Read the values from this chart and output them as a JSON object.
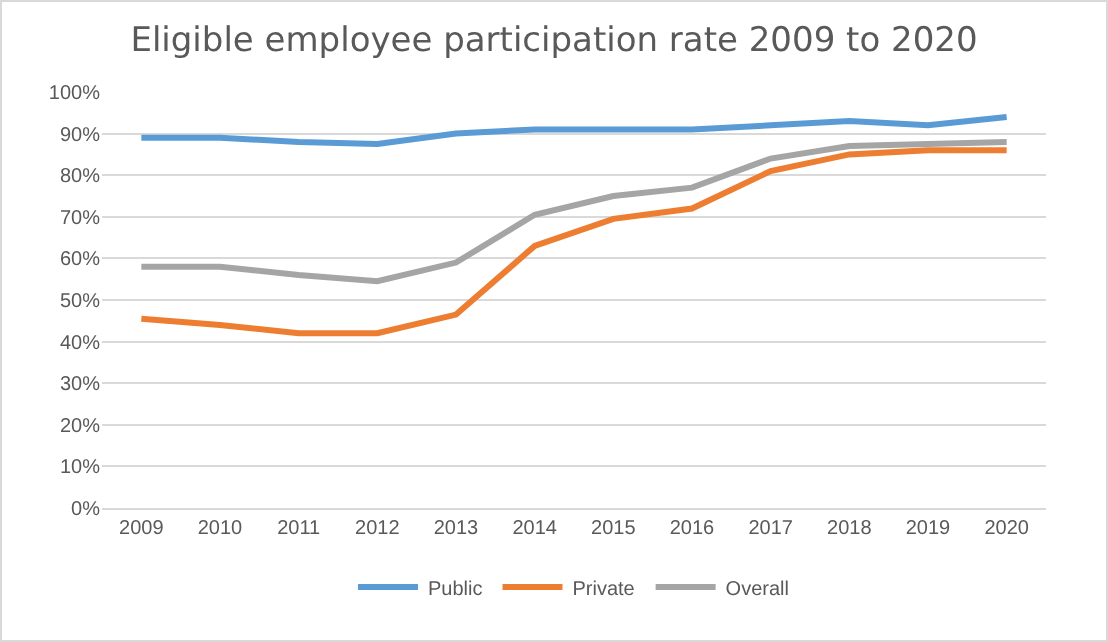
{
  "chart_data": {
    "type": "line",
    "title": "Eligible employee participation rate 2009 to 2020",
    "categories": [
      "2009",
      "2010",
      "2011",
      "2012",
      "2013",
      "2014",
      "2015",
      "2016",
      "2017",
      "2018",
      "2019",
      "2020"
    ],
    "series": [
      {
        "name": "Public",
        "color": "#5b9bd5",
        "values": [
          89,
          89,
          88,
          87.5,
          90,
          91,
          91,
          91,
          92,
          93,
          92,
          94
        ]
      },
      {
        "name": "Private",
        "color": "#ed7d31",
        "values": [
          45.5,
          44,
          42,
          42,
          46.5,
          63,
          69.5,
          72,
          81,
          85,
          86,
          86
        ]
      },
      {
        "name": "Overall",
        "color": "#a5a5a5",
        "values": [
          58,
          58,
          56,
          54.5,
          59,
          70.5,
          75,
          77,
          84,
          87,
          87.5,
          88
        ]
      }
    ],
    "ylim": [
      0,
      100
    ],
    "yticks": [
      {
        "value": 0,
        "label": "0%"
      },
      {
        "value": 10,
        "label": "10%"
      },
      {
        "value": 20,
        "label": "20%"
      },
      {
        "value": 30,
        "label": "30%"
      },
      {
        "value": 40,
        "label": "40%"
      },
      {
        "value": 50,
        "label": "50%"
      },
      {
        "value": 60,
        "label": "60%"
      },
      {
        "value": 70,
        "label": "70%"
      },
      {
        "value": 80,
        "label": "80%"
      },
      {
        "value": 90,
        "label": "90%"
      },
      {
        "value": 100,
        "label": "100%"
      }
    ],
    "grid": "y",
    "legend": "bottom",
    "marker": "none",
    "line_style": "solid"
  }
}
